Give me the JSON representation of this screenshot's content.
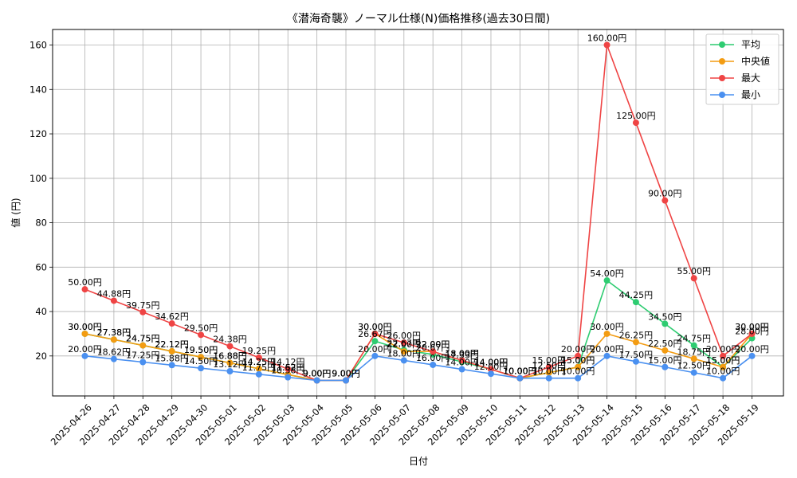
{
  "chart_data": {
    "type": "line",
    "title": "《潜海奇襲》ノーマル仕様(N)価格推移(過去30日間)",
    "xlabel": "日付",
    "ylabel": "値 (円)",
    "ylim": [
      2,
      167
    ],
    "yticks": [
      20,
      40,
      60,
      80,
      100,
      120,
      140,
      160
    ],
    "grid": true,
    "legend_position": "top-right",
    "label_suffix": "円",
    "categories": [
      "2025-04-26",
      "2025-04-27",
      "2025-04-28",
      "2025-04-29",
      "2025-04-30",
      "2025-05-01",
      "2025-05-02",
      "2025-05-03",
      "2025-05-04",
      "2025-05-05",
      "2025-05-06",
      "2025-05-07",
      "2025-05-08",
      "2025-05-09",
      "2025-05-10",
      "2025-05-11",
      "2025-05-12",
      "2025-05-13",
      "2025-05-14",
      "2025-05-15",
      "2025-05-16",
      "2025-05-17",
      "2025-05-18",
      "2025-05-19"
    ],
    "series": [
      {
        "name": "平均",
        "color": "#2ecc71",
        "values": [
          30.0,
          27.38,
          24.75,
          22.12,
          19.5,
          16.88,
          14.25,
          11.62,
          9.0,
          9.0,
          26.67,
          22.67,
          20.67,
          17.33,
          14.0,
          10.0,
          12.5,
          15.0,
          54.0,
          44.25,
          34.5,
          24.75,
          15.0,
          28.0
        ]
      },
      {
        "name": "中央値",
        "color": "#f39c12",
        "values": [
          30.0,
          27.38,
          24.75,
          22.12,
          19.5,
          16.88,
          14.25,
          11.62,
          9.0,
          9.0,
          30.0,
          22.0,
          22.0,
          18.0,
          14.0,
          10.0,
          12.5,
          15.0,
          30.0,
          26.25,
          22.5,
          18.75,
          15.0,
          30.0
        ]
      },
      {
        "name": "最大",
        "color": "#ef4444",
        "values": [
          50.0,
          44.88,
          39.75,
          34.62,
          29.5,
          24.38,
          19.25,
          14.12,
          9.0,
          9.0,
          30.0,
          26.0,
          22.0,
          18.0,
          14.0,
          10.0,
          15.0,
          20.0,
          160.0,
          125.0,
          90.0,
          55.0,
          20.0,
          30.0
        ]
      },
      {
        "name": "最小",
        "color": "#4a90f0",
        "values": [
          20.0,
          18.62,
          17.25,
          15.88,
          14.5,
          13.12,
          11.75,
          10.38,
          9.0,
          9.0,
          20.0,
          18.0,
          16.0,
          14.0,
          12.0,
          10.0,
          10.0,
          10.0,
          20.0,
          17.5,
          15.0,
          12.5,
          10.0,
          20.0
        ]
      }
    ]
  }
}
